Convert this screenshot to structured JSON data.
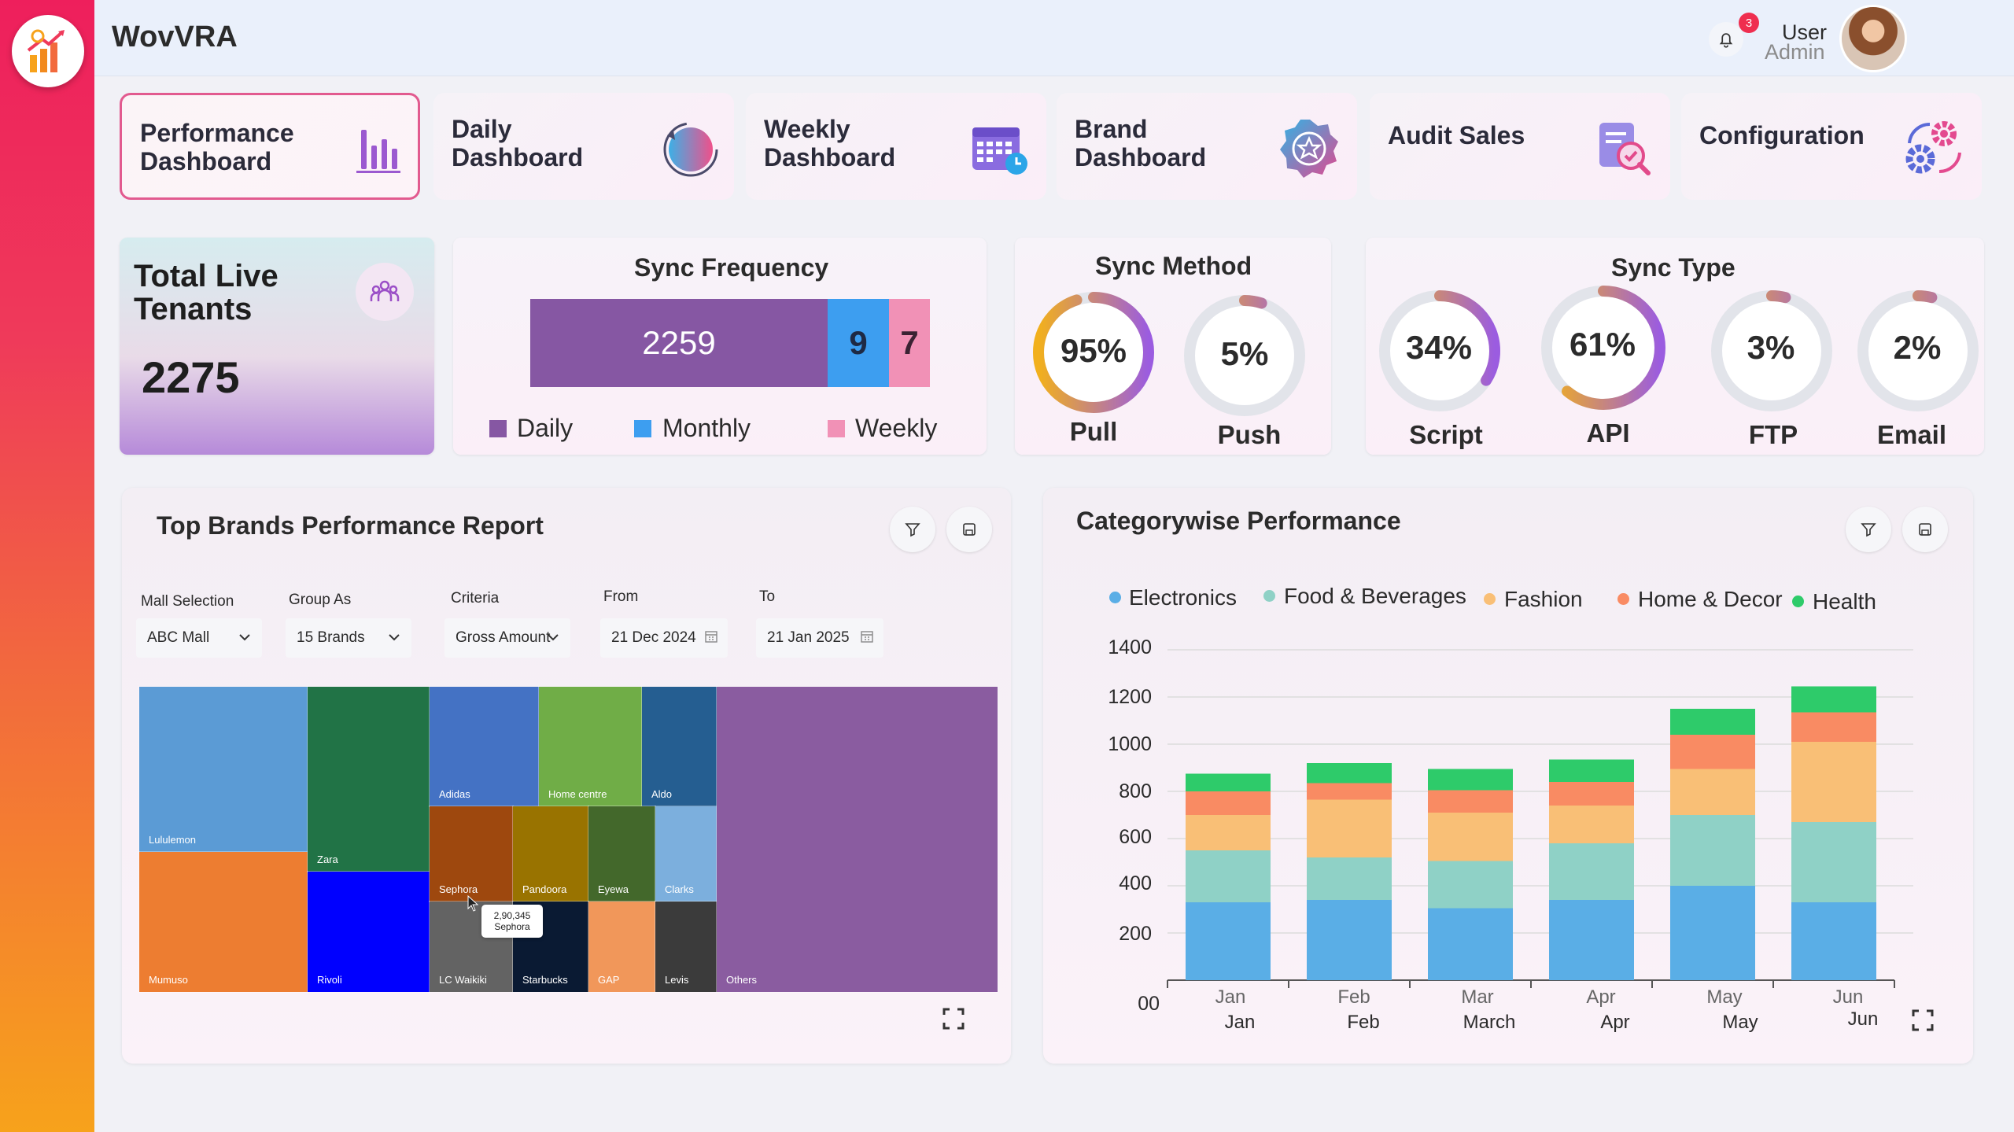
{
  "app": {
    "title": "WovVRA"
  },
  "header": {
    "notifications": "3",
    "user_name": "User",
    "user_role": "Admin"
  },
  "nav": [
    {
      "label": "Performance\nDashboard",
      "icon": "bar-chart-icon"
    },
    {
      "label": "Daily\nDashboard",
      "icon": "refresh-clock-icon"
    },
    {
      "label": "Weekly\nDashboard",
      "icon": "calendar-icon"
    },
    {
      "label": "Brand\nDashboard",
      "icon": "badge-star-icon"
    },
    {
      "label": "Audit Sales",
      "icon": "document-search-icon"
    },
    {
      "label": "Configuration",
      "icon": "gears-icon"
    }
  ],
  "tenants": {
    "title": "Total Live Tenants",
    "value": "2275"
  },
  "sync_frequency": {
    "title": "Sync Frequency",
    "segments": [
      {
        "label": "Daily",
        "value": 2259,
        "color": "#8657a3"
      },
      {
        "label": "Monthly",
        "value": 9,
        "color": "#3d9ef0"
      },
      {
        "label": "Weekly",
        "value": 7,
        "color": "#f191b6"
      }
    ]
  },
  "sync_method": {
    "title": "Sync Method",
    "gauges": [
      {
        "label": "Pull",
        "value": "95%",
        "fraction": 0.95
      },
      {
        "label": "Push",
        "value": "5%",
        "fraction": 0.05
      }
    ]
  },
  "sync_type": {
    "title": "Sync Type",
    "gauges": [
      {
        "label": "Script",
        "value": "34%",
        "fraction": 0.34
      },
      {
        "label": "API",
        "value": "61%",
        "fraction": 0.61
      },
      {
        "label": "FTP",
        "value": "3%",
        "fraction": 0.03
      },
      {
        "label": "Email",
        "value": "2%",
        "fraction": 0.02
      }
    ]
  },
  "brands_report": {
    "title": "Top Brands Performance Report",
    "filters": {
      "mall_label": "Mall Selection",
      "mall_value": "ABC Mall",
      "group_label": "Group As",
      "group_value": "15 Brands",
      "criteria_label": "Criteria",
      "criteria_value": "Gross Amount",
      "from_label": "From",
      "from_value": "21 Dec 2024",
      "to_label": "To",
      "to_value": "21 Jan 2025"
    },
    "treemap": [
      {
        "name": "Lululemon",
        "color": "#5b9bd5"
      },
      {
        "name": "Mumuso",
        "color": "#ed7d31"
      },
      {
        "name": "Zara",
        "color": "#217346"
      },
      {
        "name": "Rivoli",
        "color": "#0000ff"
      },
      {
        "name": "Adidas",
        "color": "#4472c4"
      },
      {
        "name": "Home centre",
        "color": "#70ad47"
      },
      {
        "name": "Aldo",
        "color": "#255e91"
      },
      {
        "name": "Sephora",
        "color": "#9e480e"
      },
      {
        "name": "Pandoora",
        "color": "#997300"
      },
      {
        "name": "Eyewa",
        "color": "#43682b"
      },
      {
        "name": "Clarks",
        "color": "#7cafdd"
      },
      {
        "name": "LC Waikiki",
        "color": "#636363"
      },
      {
        "name": "Starbucks",
        "color": "#0a1a33"
      },
      {
        "name": "GAP",
        "color": "#f1975a"
      },
      {
        "name": "Levis",
        "color": "#3b3b3b"
      },
      {
        "name": "Others",
        "color": "#8a5ca0"
      }
    ],
    "tooltip": {
      "value": "2,90,345",
      "name": "Sephora"
    }
  },
  "category_performance": {
    "title": "Categorywise Performance",
    "x_labels_top": [
      "Jan",
      "Feb",
      "Mar",
      "Apr",
      "May",
      "Jun"
    ],
    "x_labels_bottom": [
      "Jan",
      "Feb",
      "March",
      "Apr",
      "May",
      "Jun"
    ],
    "y_ticks": [
      "1400",
      "1200",
      "1000",
      "800",
      "600",
      "400",
      "200",
      "00"
    ],
    "chart_data": {
      "type": "bar",
      "stacked": true,
      "categories": [
        "Jan",
        "Feb",
        "Mar",
        "Apr",
        "May",
        "Jun"
      ],
      "ylim": [
        0,
        1400
      ],
      "legend": "top",
      "series": [
        {
          "name": "Electronics",
          "color": "#5aaee6",
          "values": [
            330,
            340,
            305,
            340,
            400,
            330
          ]
        },
        {
          "name": "Food & Beverages",
          "color": "#8fd1c6",
          "values": [
            220,
            180,
            200,
            240,
            300,
            340
          ]
        },
        {
          "name": "Fashion",
          "color": "#f9bf76",
          "values": [
            150,
            245,
            205,
            160,
            195,
            340
          ]
        },
        {
          "name": "Home & Decor",
          "color": "#f98b63",
          "values": [
            100,
            70,
            95,
            100,
            145,
            125
          ]
        },
        {
          "name": "Health",
          "color": "#2ecb6a",
          "values": [
            75,
            85,
            90,
            95,
            110,
            110
          ]
        }
      ]
    }
  }
}
